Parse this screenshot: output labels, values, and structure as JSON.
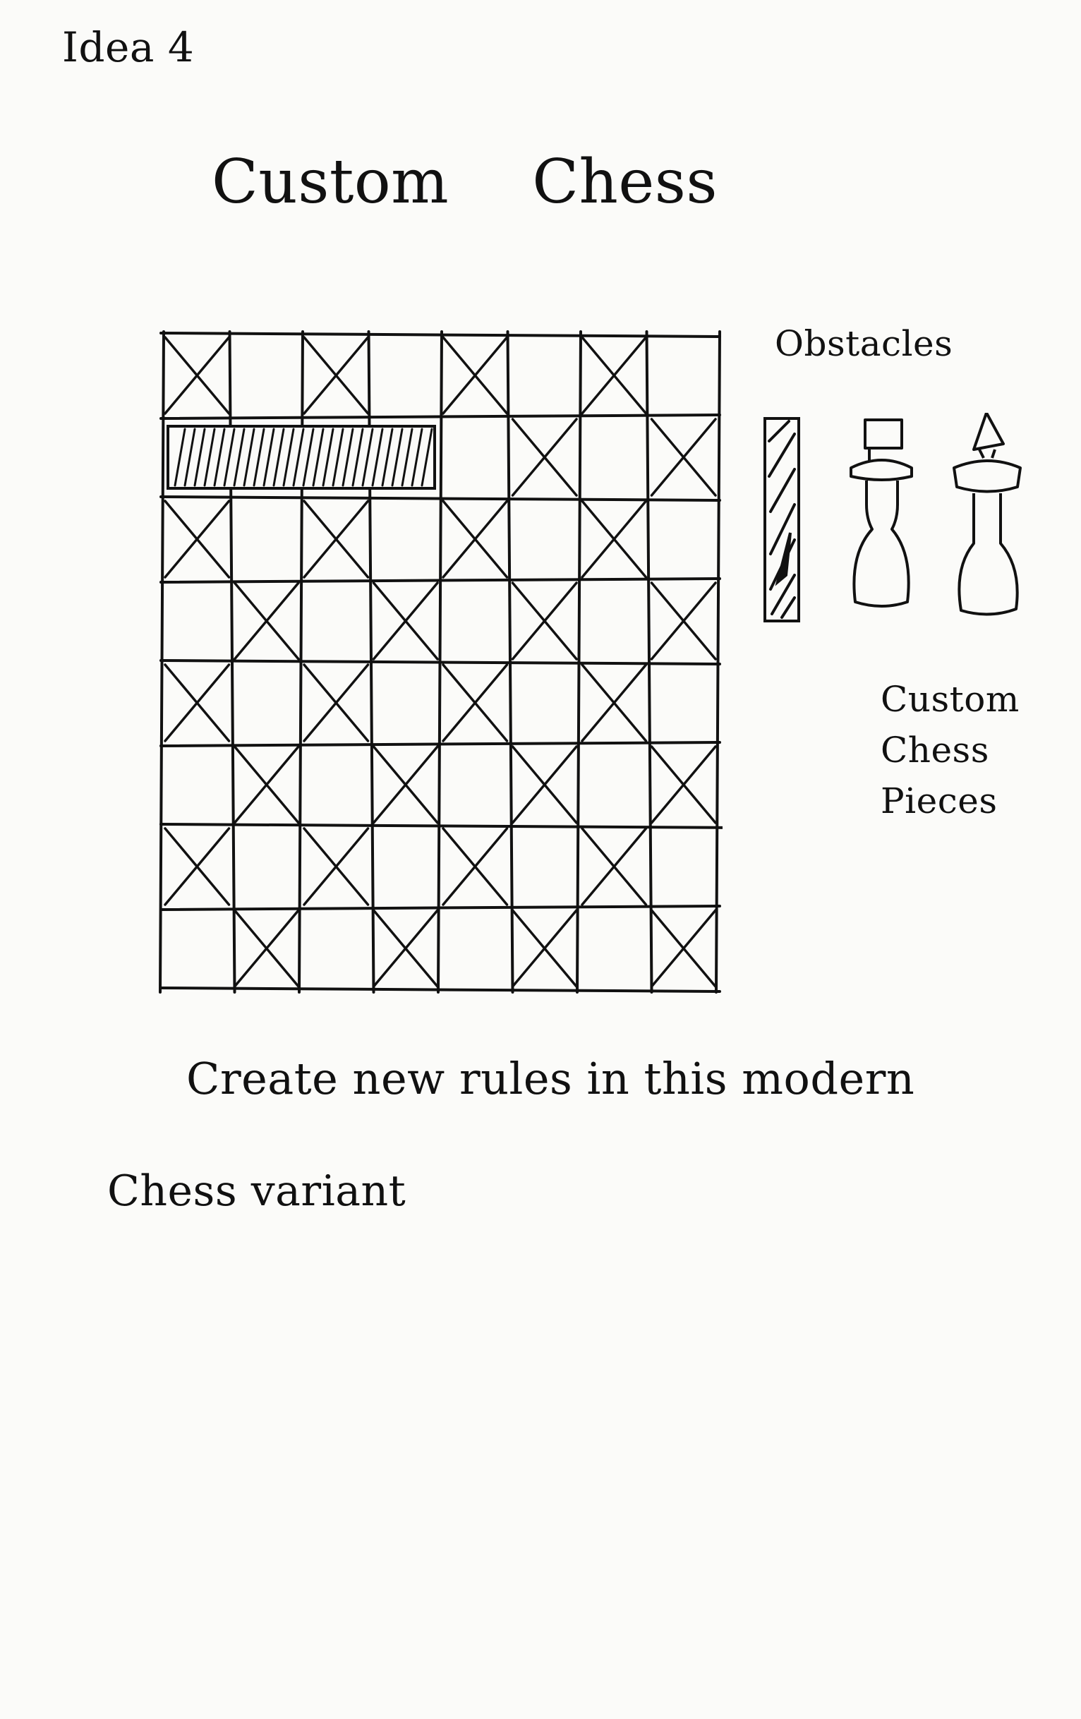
{
  "page": {
    "idea_label": "Idea 4",
    "title_word_1": "Custom",
    "title_word_2": "Chess"
  },
  "sidebar": {
    "obstacles_label": "Obstacles",
    "pieces_label_lines": [
      "Custom",
      "Chess",
      "Pieces"
    ]
  },
  "description": {
    "line_1": "Create new rules in this modern",
    "line_2": "Chess variant"
  },
  "board": {
    "rows": 8,
    "cols": 8,
    "crossed_cells": [
      [
        1,
        0,
        1,
        0,
        1,
        0,
        1,
        0
      ],
      [
        0,
        0,
        0,
        0,
        0,
        1,
        0,
        1
      ],
      [
        1,
        0,
        1,
        0,
        1,
        0,
        1,
        0
      ],
      [
        0,
        1,
        0,
        1,
        0,
        1,
        0,
        1
      ],
      [
        1,
        0,
        1,
        0,
        1,
        0,
        1,
        0
      ],
      [
        0,
        1,
        0,
        1,
        0,
        1,
        0,
        1
      ],
      [
        1,
        0,
        1,
        0,
        1,
        0,
        1,
        0
      ],
      [
        0,
        1,
        0,
        1,
        0,
        1,
        0,
        1
      ]
    ],
    "obstacle_row": 1,
    "obstacle_span_cols": 4
  },
  "colors": {
    "ink": "#111111",
    "paper": "#fbfbf9"
  },
  "icons": {
    "obstacle": "hatched-bar-icon",
    "piece_1": "flag-piece-icon",
    "piece_2": "cone-piece-icon"
  }
}
